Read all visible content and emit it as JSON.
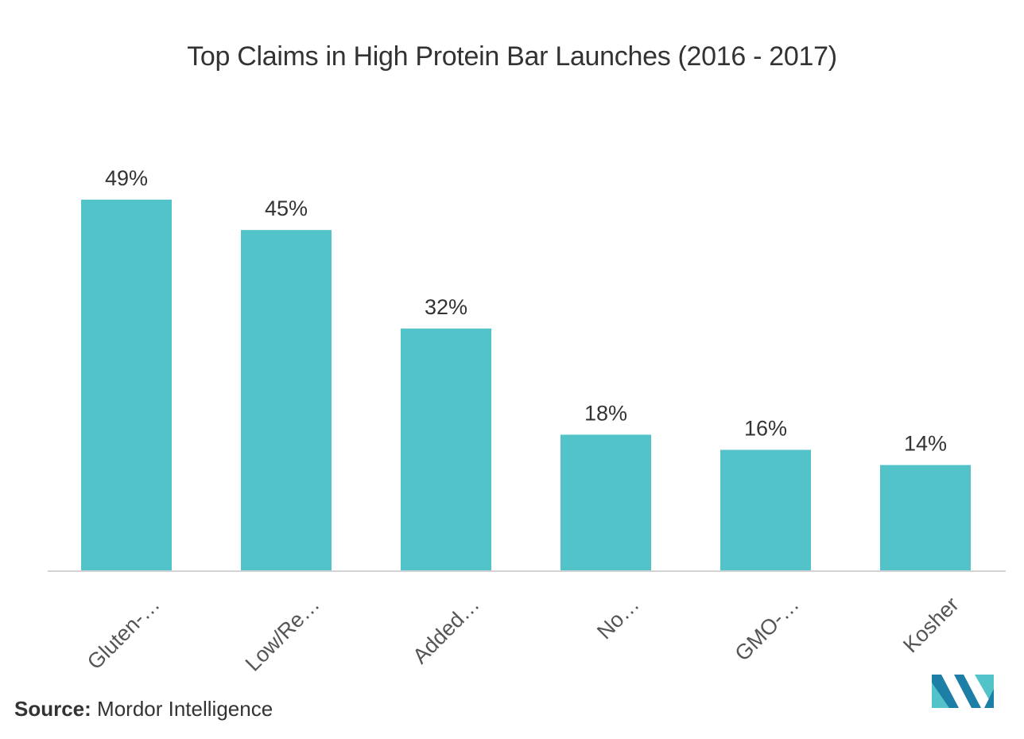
{
  "chart_data": {
    "type": "bar",
    "title": "Top Claims in High Protein Bar Launches (2016 - 2017)",
    "categories": [
      "Gluten-…",
      "Low/Re…",
      "Added…",
      "No…",
      "GMO-…",
      "Kosher"
    ],
    "values": [
      49,
      45,
      32,
      18,
      16,
      14
    ],
    "data_labels": [
      "49%",
      "45%",
      "32%",
      "18%",
      "16%",
      "14%"
    ],
    "unit": "%",
    "xlabel": "",
    "ylabel": "",
    "ylim": [
      0,
      49
    ],
    "grid": false,
    "legend": "none",
    "bar_color": "#52c3c9"
  },
  "source": {
    "label": "Source:",
    "text": "Mordor Intelligence"
  },
  "logo": {
    "icon": "mordor-intelligence-logo",
    "colors": [
      "#1d7fa6",
      "#52c3c9"
    ]
  }
}
